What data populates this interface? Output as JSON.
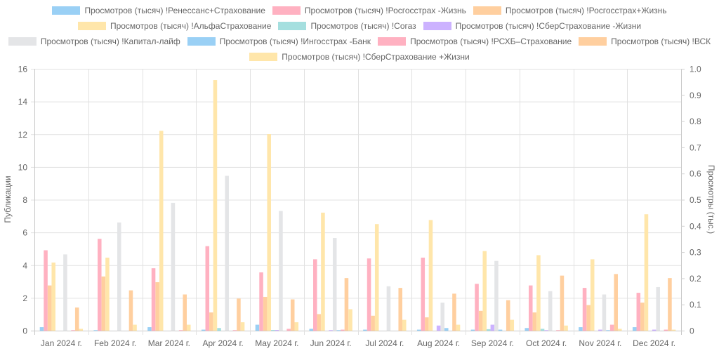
{
  "chart_data": {
    "type": "bar",
    "title": "",
    "categories": [
      "Jan 2024 г.",
      "Feb 2024 г.",
      "Mar 2024 г.",
      "Apr 2024 г.",
      "May 2024 г.",
      "Jun 2024 г.",
      "Jul 2024 г.",
      "Aug 2024 г.",
      "Sep 2024 г.",
      "Oct 2024 г.",
      "Nov 2024 г.",
      "Dec 2024 г."
    ],
    "ylabel": "Публикации",
    "y2label": "Просмотры (тыс.)",
    "ylim": [
      0,
      16
    ],
    "y2lim": [
      0,
      1.0
    ],
    "yticks": [
      "0",
      "2",
      "4",
      "6",
      "8",
      "10",
      "12",
      "14",
      "16"
    ],
    "y2ticks": [
      "0",
      "0.1",
      "0.2",
      "0.3",
      "0.4",
      "0.5",
      "0.6",
      "0.7",
      "0.8",
      "0.9",
      "1.0"
    ],
    "grid": true,
    "legend_position": "top",
    "series": [
      {
        "name": "Просмотров (тысяч) !Ренессанс+Страхование",
        "color": "#9ad0f5",
        "values": [
          0.2,
          0.02,
          0.2,
          0.05,
          0.35,
          0.1,
          0.05,
          0.05,
          0.05,
          0.15,
          0.2,
          0.2
        ]
      },
      {
        "name": "Просмотров (тысяч) !Росгосстрах -Жизнь",
        "color": "#ffb1c1",
        "values": [
          4.9,
          5.6,
          3.8,
          5.15,
          3.55,
          4.35,
          4.4,
          4.45,
          2.85,
          2.75,
          2.6,
          2.3
        ]
      },
      {
        "name": "Просмотров (тысяч) !Росгосстрах+Жизнь",
        "color": "#ffcf9f",
        "values": [
          2.75,
          3.3,
          2.95,
          1.1,
          2.05,
          1.0,
          0.9,
          0.8,
          1.2,
          1.1,
          1.55,
          1.7
        ]
      },
      {
        "name": "Просмотров (тысяч) !АльфаСтрахование",
        "color": "#ffe6aa",
        "values": [
          4.15,
          4.45,
          12.2,
          15.3,
          12.0,
          7.2,
          6.5,
          6.75,
          4.85,
          4.6,
          4.35,
          7.1
        ]
      },
      {
        "name": "Просмотров (тысяч) !Согаз",
        "color": "#a5dfdf",
        "values": [
          0,
          0,
          0,
          0.15,
          0.03,
          0,
          0,
          0,
          0.08,
          0.1,
          0,
          0
        ]
      },
      {
        "name": "Просмотров (тысяч) !СберСтрахование -Жизни",
        "color": "#ccb2ff",
        "values": [
          0,
          0,
          0,
          0,
          0.03,
          0.02,
          0,
          0.3,
          0.35,
          0.02,
          0.05,
          0.05
        ]
      },
      {
        "name": "Просмотров (тысяч) !Капитал-лайф",
        "color": "#e4e5e7",
        "values": [
          4.65,
          6.6,
          7.8,
          9.45,
          7.3,
          5.65,
          2.7,
          1.7,
          4.25,
          2.4,
          2.2,
          2.65
        ]
      },
      {
        "name": "Просмотров (тысяч) !Ингосстрах -Банк",
        "color": "#9ad0f5",
        "values": [
          0,
          0,
          0,
          0,
          0,
          0.02,
          0,
          0.15,
          0.05,
          0,
          0.02,
          0
        ]
      },
      {
        "name": "Просмотров (тысяч) !РСХБ–Страхование",
        "color": "#ffb1c1",
        "values": [
          0.02,
          0,
          0.02,
          0.02,
          0.1,
          0.05,
          0,
          0,
          0,
          0.02,
          0.35,
          0.05
        ]
      },
      {
        "name": "Просмотров (тысяч) !ВСК",
        "color": "#ffcf9f",
        "values": [
          1.4,
          2.45,
          2.2,
          1.95,
          1.9,
          3.2,
          2.6,
          2.25,
          1.85,
          3.35,
          3.45,
          3.2
        ]
      },
      {
        "name": "Просмотров (тысяч) !СберСтрахование +Жизни",
        "color": "#ffe6aa",
        "values": [
          0.1,
          0.35,
          0.35,
          0.5,
          0.5,
          1.3,
          0.65,
          0.35,
          0.65,
          0.3,
          0.1,
          0.05
        ]
      }
    ]
  }
}
